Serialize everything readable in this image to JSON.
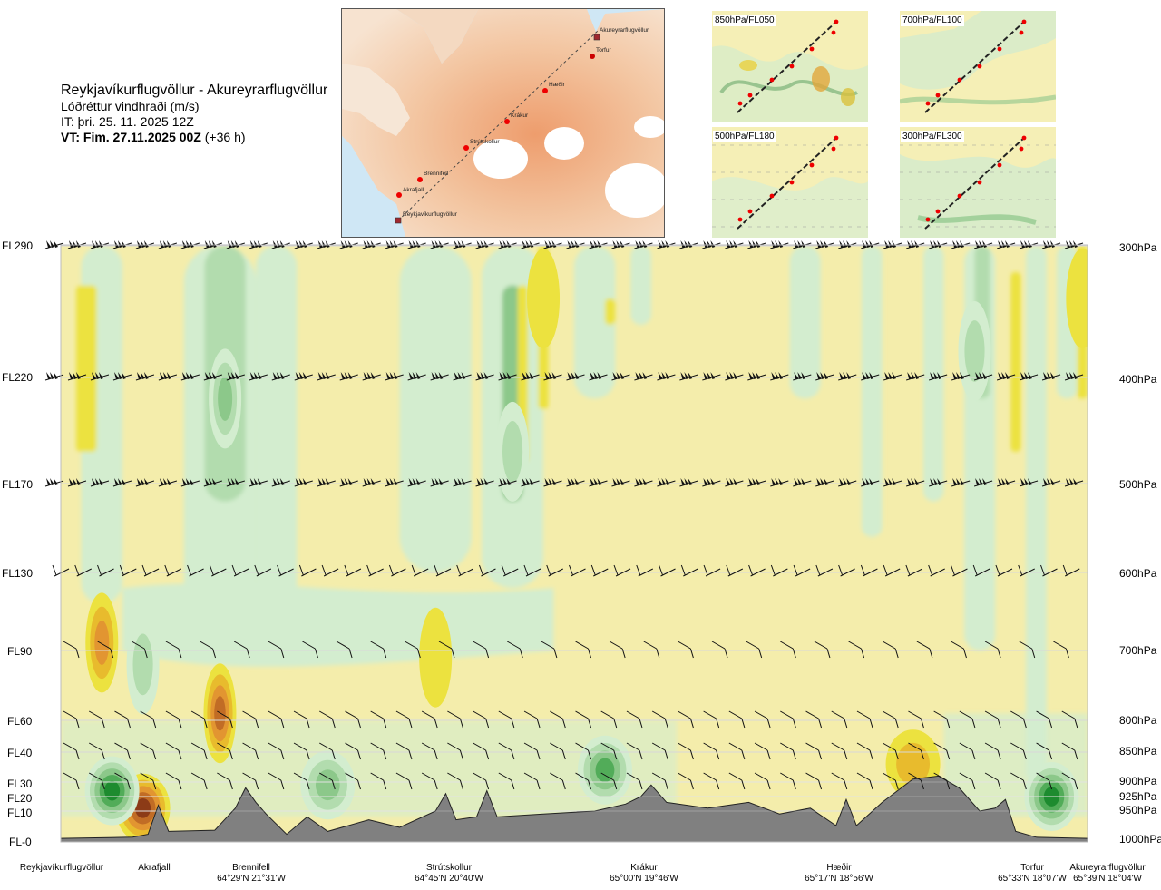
{
  "header": {
    "route": "Reykjavíkurflugvöllur - Akureyrarflugvöllur",
    "variable": "Lóðréttur vindhraði (m/s)",
    "issue_time": "IT: þri. 25. 11. 2025 12Z",
    "valid_time": "VT: Fim. 27.11.2025 00Z",
    "lead_time": "(+36 h)"
  },
  "map": {
    "waypoints": [
      {
        "name": "Akureyrarflugvöllur",
        "kind": "airport"
      },
      {
        "name": "Torfur",
        "kind": "point"
      },
      {
        "name": "Hæðir",
        "kind": "point"
      },
      {
        "name": "Krákur",
        "kind": "point"
      },
      {
        "name": "Strútskollur",
        "kind": "point"
      },
      {
        "name": "Brennifell",
        "kind": "point"
      },
      {
        "name": "Akrafjall",
        "kind": "point"
      },
      {
        "name": "Reykjavíkurflugvöllur",
        "kind": "airport"
      }
    ]
  },
  "insets": [
    {
      "label": "850hPa/FL050"
    },
    {
      "label": "700hPa/FL100"
    },
    {
      "label": "500hPa/FL180"
    },
    {
      "label": "300hPa/FL300"
    }
  ],
  "colors": {
    "neutral_bg": "#f4edab",
    "neutral_light": "#fbf8d6",
    "white_zone": "#fbfdf0",
    "down_1": "#d3edcf",
    "down_2": "#b2dcae",
    "down_3": "#8cc88a",
    "down_4": "#52ac59",
    "down_5": "#1d8b2f",
    "up_1": "#ece23f",
    "up_2": "#e8bb2d",
    "up_3": "#e29531",
    "up_4": "#c16c25",
    "up_5": "#8c3b17",
    "terrain": "#808080",
    "barb": "#111111"
  },
  "chart_data": {
    "type": "heatmap",
    "title": "Lóðréttur vindhraði (m/s)",
    "xlabel": "",
    "ylabel": "",
    "grid": true,
    "pressure_levels": [
      {
        "pressure": "300hPa",
        "flight_level": "FL290"
      },
      {
        "pressure": "400hPa",
        "flight_level": "FL220"
      },
      {
        "pressure": "500hPa",
        "flight_level": "FL170"
      },
      {
        "pressure": "600hPa",
        "flight_level": "FL130"
      },
      {
        "pressure": "700hPa",
        "flight_level": "FL90"
      },
      {
        "pressure": "800hPa",
        "flight_level": "FL60"
      },
      {
        "pressure": "850hPa",
        "flight_level": "FL40"
      },
      {
        "pressure": "900hPa",
        "flight_level": "FL30"
      },
      {
        "pressure": "925hPa",
        "flight_level": "FL20"
      },
      {
        "pressure": "950hPa",
        "flight_level": "FL10"
      },
      {
        "pressure": "1000hPa",
        "flight_level": "FL-0"
      }
    ],
    "pressure_labels": [
      "300hPa",
      "400hPa",
      "500hPa",
      "600hPa",
      "700hPa",
      "800hPa",
      "850hPa",
      "900hPa",
      "925hPa",
      "950hPa",
      "1000hPa"
    ],
    "flight_level_labels": [
      "FL290",
      "FL220",
      "FL170",
      "FL130",
      "FL90",
      "FL60",
      "FL40",
      "FL30",
      "FL20",
      "FL10",
      "FL-0"
    ],
    "stations": [
      {
        "name": "Reykjavíkurflugvöllur",
        "coord": "",
        "distance_frac": 0.0
      },
      {
        "name": "Akrafjall",
        "coord": "",
        "distance_frac": 0.09
      },
      {
        "name": "Brennifell",
        "coord": "64°29'N 21°31'W",
        "distance_frac": 0.185
      },
      {
        "name": "Strútskollur",
        "coord": "64°45'N 20°40'W",
        "distance_frac": 0.38
      },
      {
        "name": "Krákur",
        "coord": "65°00'N 19°46'W",
        "distance_frac": 0.57
      },
      {
        "name": "Hæðir",
        "coord": "65°17'N 18°56'W",
        "distance_frac": 0.745
      },
      {
        "name": "Torfur",
        "coord": "65°33'N 18°07'W",
        "distance_frac": 0.947
      },
      {
        "name": "Akureyrarflugvöllur",
        "coord": "65°39'N 18°04'W",
        "distance_frac": 1.0
      }
    ],
    "terrain_profile": [
      {
        "distance_frac": 0.0,
        "pressure_hPa": 997
      },
      {
        "distance_frac": 0.07,
        "pressure_hPa": 995
      },
      {
        "distance_frac": 0.085,
        "pressure_hPa": 990
      },
      {
        "distance_frac": 0.095,
        "pressure_hPa": 940
      },
      {
        "distance_frac": 0.105,
        "pressure_hPa": 985
      },
      {
        "distance_frac": 0.15,
        "pressure_hPa": 983
      },
      {
        "distance_frac": 0.17,
        "pressure_hPa": 945
      },
      {
        "distance_frac": 0.18,
        "pressure_hPa": 910
      },
      {
        "distance_frac": 0.19,
        "pressure_hPa": 935
      },
      {
        "distance_frac": 0.2,
        "pressure_hPa": 955
      },
      {
        "distance_frac": 0.22,
        "pressure_hPa": 990
      },
      {
        "distance_frac": 0.24,
        "pressure_hPa": 960
      },
      {
        "distance_frac": 0.26,
        "pressure_hPa": 985
      },
      {
        "distance_frac": 0.3,
        "pressure_hPa": 965
      },
      {
        "distance_frac": 0.33,
        "pressure_hPa": 978
      },
      {
        "distance_frac": 0.365,
        "pressure_hPa": 950
      },
      {
        "distance_frac": 0.375,
        "pressure_hPa": 920
      },
      {
        "distance_frac": 0.385,
        "pressure_hPa": 965
      },
      {
        "distance_frac": 0.405,
        "pressure_hPa": 960
      },
      {
        "distance_frac": 0.415,
        "pressure_hPa": 915
      },
      {
        "distance_frac": 0.425,
        "pressure_hPa": 960
      },
      {
        "distance_frac": 0.47,
        "pressure_hPa": 955
      },
      {
        "distance_frac": 0.52,
        "pressure_hPa": 950
      },
      {
        "distance_frac": 0.55,
        "pressure_hPa": 938
      },
      {
        "distance_frac": 0.565,
        "pressure_hPa": 925
      },
      {
        "distance_frac": 0.575,
        "pressure_hPa": 905
      },
      {
        "distance_frac": 0.59,
        "pressure_hPa": 935
      },
      {
        "distance_frac": 0.63,
        "pressure_hPa": 945
      },
      {
        "distance_frac": 0.67,
        "pressure_hPa": 935
      },
      {
        "distance_frac": 0.7,
        "pressure_hPa": 955
      },
      {
        "distance_frac": 0.73,
        "pressure_hPa": 945
      },
      {
        "distance_frac": 0.755,
        "pressure_hPa": 975
      },
      {
        "distance_frac": 0.765,
        "pressure_hPa": 930
      },
      {
        "distance_frac": 0.775,
        "pressure_hPa": 975
      },
      {
        "distance_frac": 0.8,
        "pressure_hPa": 935
      },
      {
        "distance_frac": 0.83,
        "pressure_hPa": 895
      },
      {
        "distance_frac": 0.855,
        "pressure_hPa": 890
      },
      {
        "distance_frac": 0.875,
        "pressure_hPa": 910
      },
      {
        "distance_frac": 0.895,
        "pressure_hPa": 950
      },
      {
        "distance_frac": 0.91,
        "pressure_hPa": 945
      },
      {
        "distance_frac": 0.92,
        "pressure_hPa": 930
      },
      {
        "distance_frac": 0.93,
        "pressure_hPa": 985
      },
      {
        "distance_frac": 0.95,
        "pressure_hPa": 995
      },
      {
        "distance_frac": 1.0,
        "pressure_hPa": 997
      }
    ],
    "vertical_velocity_features": [
      {
        "type": "updraft",
        "distance_frac": 0.08,
        "pressure_hPa": 945,
        "max_class": 5
      },
      {
        "type": "updraft",
        "distance_frac": 0.155,
        "pressure_hPa": 790,
        "max_class": 4
      },
      {
        "type": "updraft",
        "distance_frac": 0.04,
        "pressure_hPa": 690,
        "max_class": 3
      },
      {
        "type": "updraft",
        "distance_frac": 0.365,
        "pressure_hPa": 710,
        "max_class": 1
      },
      {
        "type": "updraft",
        "distance_frac": 0.47,
        "pressure_hPa": 340,
        "max_class": 1
      },
      {
        "type": "updraft",
        "distance_frac": 0.83,
        "pressure_hPa": 870,
        "max_class": 2
      },
      {
        "type": "updraft",
        "distance_frac": 0.995,
        "pressure_hPa": 340,
        "max_class": 1
      },
      {
        "type": "downdraft",
        "distance_frac": 0.05,
        "pressure_hPa": 915,
        "max_class": 5
      },
      {
        "type": "downdraft",
        "distance_frac": 0.26,
        "pressure_hPa": 905,
        "max_class": 3
      },
      {
        "type": "downdraft",
        "distance_frac": 0.53,
        "pressure_hPa": 880,
        "max_class": 4
      },
      {
        "type": "downdraft",
        "distance_frac": 0.965,
        "pressure_hPa": 925,
        "max_class": 5
      },
      {
        "type": "downdraft",
        "distance_frac": 0.16,
        "pressure_hPa": 420,
        "max_class": 3
      },
      {
        "type": "downdraft",
        "distance_frac": 0.44,
        "pressure_hPa": 470,
        "max_class": 2
      },
      {
        "type": "downdraft",
        "distance_frac": 0.89,
        "pressure_hPa": 380,
        "max_class": 2
      },
      {
        "type": "downdraft",
        "distance_frac": 0.08,
        "pressure_hPa": 720,
        "max_class": 2
      }
    ]
  }
}
